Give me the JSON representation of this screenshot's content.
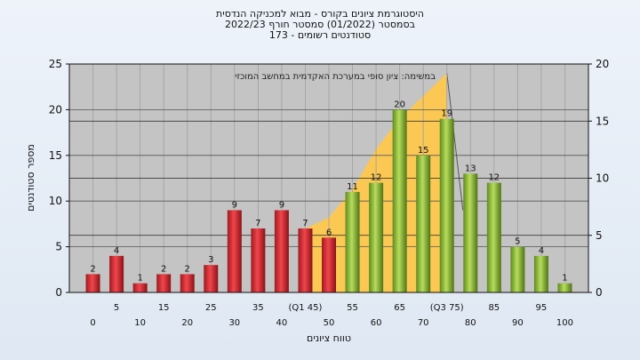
{
  "chart_data": {
    "type": "bar",
    "title": "היסטוגרמת ציונים בקורס - מבוא למכניקה הנדסית",
    "subtitle_1": "בסמסטר  (01/2022)  סמסטר חורף 2022/23",
    "subtitle_2": "סטודנטים רשומים - 173",
    "xlabel": "טווח ציונים",
    "ylabel": "מספר סטודנטים",
    "ylim": [
      0,
      25
    ],
    "y_ticks": [
      "0",
      "5",
      "10",
      "15",
      "20",
      "25"
    ],
    "y2lim": [
      0,
      20
    ],
    "y2_ticks": [
      "0",
      "5",
      "10",
      "15",
      "20"
    ],
    "grid": true,
    "annotation": "במשימה: ציון סופי במערכת האקדמית במחשב המוכזי",
    "categories": [
      "0",
      "5",
      "10",
      "15",
      "20",
      "25",
      "30",
      "35",
      "40",
      "(Q1 45)",
      "50",
      "55",
      "60",
      "65",
      "70",
      "(Q3 75)",
      "80",
      "85",
      "90",
      "95",
      "100"
    ],
    "values": [
      2,
      4,
      1,
      2,
      2,
      3,
      9,
      7,
      9,
      7,
      6,
      11,
      12,
      20,
      15,
      19,
      13,
      12,
      5,
      4,
      1
    ],
    "value_labels": [
      "2",
      "4",
      "1",
      "2",
      "2",
      "3",
      "9",
      "7",
      "9",
      "7",
      "6",
      "11",
      "12",
      "20",
      "15",
      "19",
      "13",
      "12",
      "5",
      "4",
      "1"
    ],
    "bar_colors": [
      "red",
      "red",
      "red",
      "red",
      "red",
      "red",
      "red",
      "red",
      "red",
      "red",
      "red",
      "green",
      "green",
      "green",
      "green",
      "green",
      "green",
      "green",
      "green",
      "green",
      "green"
    ],
    "colors": {
      "red": "#e8323a",
      "green": "#9cc33f",
      "area": "#ffc84a",
      "plot_bg": "#c4c4c4"
    },
    "area_series": {
      "x_index": [
        9,
        10,
        11,
        12,
        13,
        14,
        15
      ],
      "values": [
        7,
        8.2,
        11.3,
        15.7,
        19,
        21.5,
        24
      ]
    }
  }
}
